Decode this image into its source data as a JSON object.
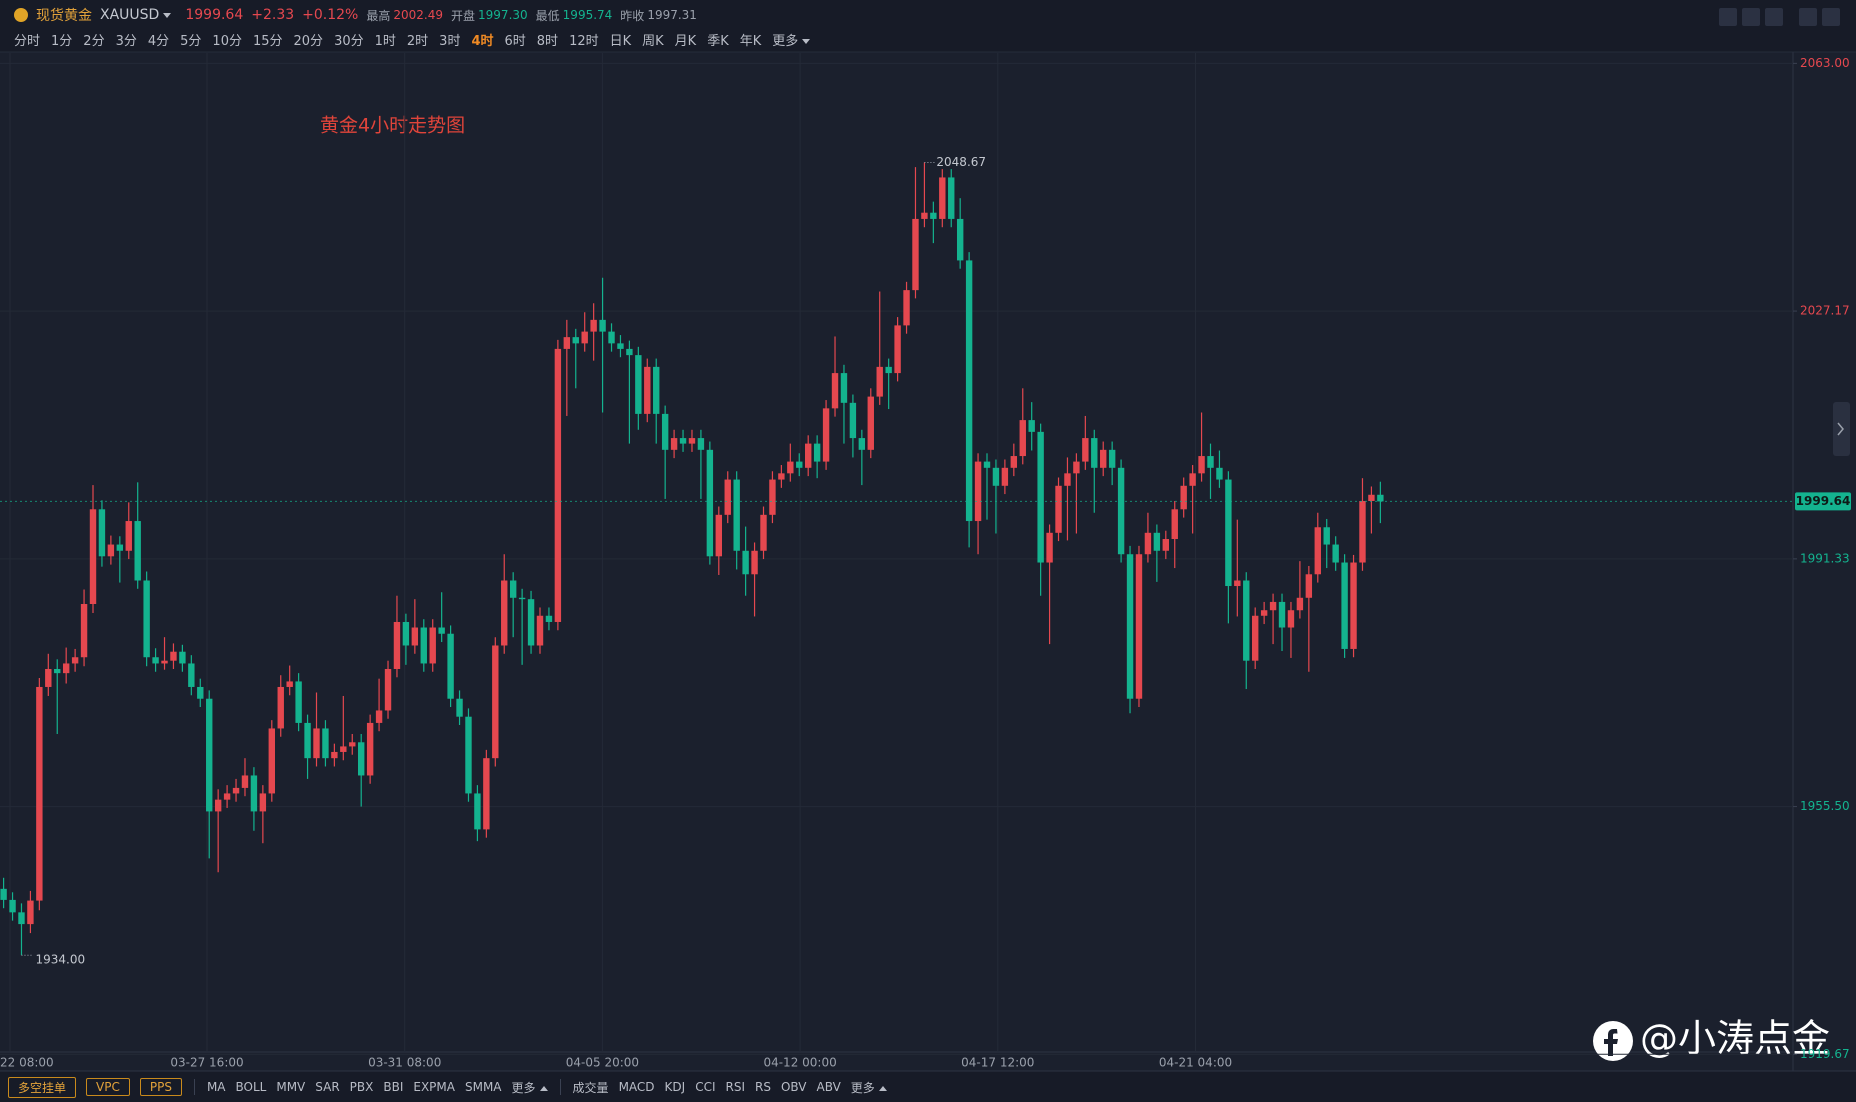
{
  "header": {
    "name": "现货黄金",
    "symbol": "XAUUSD",
    "price": "1999.64",
    "change": "+2.33",
    "change_pct": "+0.12%",
    "high_label": "最高",
    "high": "2002.49",
    "open_label": "开盘",
    "open": "1997.30",
    "low_label": "最低",
    "low": "1995.74",
    "prev_close_label": "昨收",
    "prev_close": "1997.31"
  },
  "timeframes": [
    "分时",
    "1分",
    "2分",
    "3分",
    "4分",
    "5分",
    "10分",
    "15分",
    "20分",
    "30分",
    "1时",
    "2时",
    "3时",
    "4时",
    "6时",
    "8时",
    "12时",
    "日K",
    "周K",
    "月K",
    "季K",
    "年K",
    "更多"
  ],
  "active_timeframe": "4时",
  "chart_data": {
    "type": "candlestick",
    "title": "黄金4小时走势图",
    "up_color": "#e5484f",
    "down_color": "#14b38f",
    "grid": true,
    "ylim": [
      1920.0,
      2064.5
    ],
    "yticks": [
      {
        "value": 2063.0,
        "label": "2063.00"
      },
      {
        "value": 2027.17,
        "label": "2027.17"
      },
      {
        "value": 1991.33,
        "label": "1991.33"
      },
      {
        "value": 1955.5,
        "label": "1955.50"
      },
      {
        "value": 1919.67,
        "label": "1919.67"
      }
    ],
    "xlabels": [
      "22 08:00",
      "03-27 16:00",
      "03-31 08:00",
      "04-05 20:00",
      "04-12 00:00",
      "04-17 12:00",
      "04-21 04:00"
    ],
    "low_label": "1934.00",
    "candles": [
      [
        1943.6,
        1945.2,
        1940.8,
        1942.0
      ],
      [
        1942.0,
        1943.1,
        1939.0,
        1940.2
      ],
      [
        1940.2,
        1941.5,
        1934.0,
        1938.5
      ],
      [
        1938.5,
        1943.3,
        1937.2,
        1941.9
      ],
      [
        1941.9,
        1974.1,
        1940.5,
        1972.8
      ],
      [
        1972.8,
        1977.6,
        1971.5,
        1975.4
      ],
      [
        1975.4,
        1976.8,
        1966.0,
        1974.8
      ],
      [
        1974.8,
        1978.5,
        1973.3,
        1976.2
      ],
      [
        1976.2,
        1978.3,
        1975.0,
        1977.1
      ],
      [
        1977.1,
        1986.9,
        1975.8,
        1984.8
      ],
      [
        1984.8,
        2002.0,
        1983.5,
        1998.5
      ],
      [
        1998.5,
        1999.8,
        1990.2,
        1991.7
      ],
      [
        1991.7,
        1994.7,
        1990.5,
        1993.4
      ],
      [
        1993.4,
        1994.6,
        1987.9,
        1992.5
      ],
      [
        1992.5,
        1999.5,
        1991.3,
        1996.8
      ],
      [
        1996.8,
        2002.4,
        1987.0,
        1988.2
      ],
      [
        1988.2,
        1989.5,
        1975.8,
        1977.1
      ],
      [
        1977.1,
        1978.4,
        1975.0,
        1976.2
      ],
      [
        1976.2,
        1980.0,
        1975.3,
        1976.6
      ],
      [
        1976.6,
        1979.1,
        1975.4,
        1977.9
      ],
      [
        1977.9,
        1978.9,
        1975.0,
        1976.2
      ],
      [
        1976.2,
        1977.4,
        1971.6,
        1972.8
      ],
      [
        1972.8,
        1974.0,
        1969.9,
        1971.1
      ],
      [
        1971.1,
        1972.3,
        1948.0,
        1954.8
      ],
      [
        1954.8,
        1958.0,
        1946.0,
        1956.5
      ],
      [
        1956.5,
        1958.6,
        1955.3,
        1957.4
      ],
      [
        1957.4,
        1959.5,
        1956.2,
        1958.2
      ],
      [
        1958.2,
        1962.5,
        1957.0,
        1960.0
      ],
      [
        1960.0,
        1961.2,
        1952.0,
        1954.8
      ],
      [
        1954.8,
        1958.6,
        1950.2,
        1957.4
      ],
      [
        1957.4,
        1968.0,
        1956.2,
        1966.8
      ],
      [
        1966.8,
        1974.5,
        1965.6,
        1972.8
      ],
      [
        1972.8,
        1975.9,
        1971.6,
        1973.6
      ],
      [
        1973.6,
        1974.8,
        1966.4,
        1967.6
      ],
      [
        1967.6,
        1968.8,
        1959.5,
        1962.5
      ],
      [
        1962.5,
        1972.0,
        1961.3,
        1966.8
      ],
      [
        1966.8,
        1968.0,
        1961.3,
        1962.5
      ],
      [
        1962.5,
        1964.6,
        1961.3,
        1963.4
      ],
      [
        1963.4,
        1971.5,
        1962.2,
        1964.2
      ],
      [
        1964.2,
        1966.0,
        1963.0,
        1964.8
      ],
      [
        1964.8,
        1966.0,
        1955.5,
        1960.0
      ],
      [
        1960.0,
        1968.8,
        1958.8,
        1967.6
      ],
      [
        1967.6,
        1974.0,
        1966.4,
        1969.4
      ],
      [
        1969.4,
        1976.6,
        1968.2,
        1975.4
      ],
      [
        1975.4,
        1986.0,
        1974.2,
        1982.2
      ],
      [
        1982.2,
        1983.4,
        1976.0,
        1978.8
      ],
      [
        1978.8,
        1985.5,
        1977.6,
        1981.4
      ],
      [
        1981.4,
        1982.6,
        1975.0,
        1976.2
      ],
      [
        1976.2,
        1982.6,
        1975.0,
        1981.4
      ],
      [
        1981.4,
        1986.5,
        1979.3,
        1980.5
      ],
      [
        1980.5,
        1981.7,
        1969.9,
        1971.1
      ],
      [
        1971.1,
        1972.3,
        1967.3,
        1968.5
      ],
      [
        1968.5,
        1969.7,
        1956.2,
        1957.4
      ],
      [
        1957.4,
        1958.6,
        1950.5,
        1952.2
      ],
      [
        1952.2,
        1963.7,
        1951.0,
        1962.5
      ],
      [
        1962.5,
        1980.0,
        1961.3,
        1978.8
      ],
      [
        1978.8,
        1992.0,
        1977.6,
        1988.2
      ],
      [
        1988.2,
        1989.4,
        1980.0,
        1985.7
      ],
      [
        1985.7,
        1987.0,
        1976.0,
        1985.5
      ],
      [
        1985.5,
        1986.7,
        1977.6,
        1978.8
      ],
      [
        1978.8,
        1984.3,
        1977.6,
        1983.1
      ],
      [
        1983.1,
        1984.3,
        1981.0,
        1982.2
      ],
      [
        1982.2,
        2023.0,
        1981.0,
        2021.7
      ],
      [
        2021.7,
        2025.9,
        2012.0,
        2023.4
      ],
      [
        2023.4,
        2024.6,
        2016.0,
        2022.5
      ],
      [
        2022.5,
        2027.0,
        2021.3,
        2024.2
      ],
      [
        2024.2,
        2028.3,
        2020.0,
        2025.9
      ],
      [
        2025.9,
        2032.0,
        2012.5,
        2024.2
      ],
      [
        2024.2,
        2025.4,
        2021.3,
        2022.5
      ],
      [
        2022.5,
        2023.7,
        2020.5,
        2021.7
      ],
      [
        2021.7,
        2022.9,
        2008.0,
        2020.8
      ],
      [
        2020.8,
        2022.0,
        2010.0,
        2012.3
      ],
      [
        2012.3,
        2020.3,
        2011.1,
        2019.1
      ],
      [
        2019.1,
        2020.3,
        2008.0,
        2012.3
      ],
      [
        2012.3,
        2013.5,
        2000.0,
        2007.1
      ],
      [
        2007.1,
        2010.0,
        2005.9,
        2008.8
      ],
      [
        2008.8,
        2010.0,
        2006.8,
        2008.0
      ],
      [
        2008.0,
        2010.0,
        2006.8,
        2008.8
      ],
      [
        2008.8,
        2010.0,
        2000.0,
        2007.1
      ],
      [
        2007.1,
        2008.3,
        1990.5,
        1991.7
      ],
      [
        1991.7,
        1998.9,
        1989.0,
        1997.7
      ],
      [
        1997.7,
        2004.0,
        1996.5,
        2002.8
      ],
      [
        2002.8,
        2004.0,
        1989.8,
        1992.5
      ],
      [
        1992.5,
        1996.0,
        1986.0,
        1989.1
      ],
      [
        1989.1,
        1993.7,
        1983.0,
        1992.5
      ],
      [
        1992.5,
        1998.9,
        1991.3,
        1997.7
      ],
      [
        1997.7,
        2004.0,
        1996.5,
        2002.8
      ],
      [
        2002.8,
        2004.9,
        2001.6,
        2003.7
      ],
      [
        2003.7,
        2008.0,
        2002.5,
        2005.4
      ],
      [
        2005.4,
        2006.6,
        2003.3,
        2004.5
      ],
      [
        2004.5,
        2009.2,
        2003.3,
        2008.0
      ],
      [
        2008.0,
        2009.2,
        2003.0,
        2005.4
      ],
      [
        2005.4,
        2014.3,
        2004.2,
        2013.1
      ],
      [
        2013.1,
        2023.5,
        2011.9,
        2018.2
      ],
      [
        2018.2,
        2019.4,
        2008.0,
        2013.9
      ],
      [
        2013.9,
        2015.1,
        2006.0,
        2008.8
      ],
      [
        2008.8,
        2010.0,
        2002.0,
        2007.1
      ],
      [
        2007.1,
        2016.0,
        2005.9,
        2014.8
      ],
      [
        2014.8,
        2030.0,
        2013.6,
        2019.1
      ],
      [
        2019.1,
        2020.3,
        2013.0,
        2018.2
      ],
      [
        2018.2,
        2026.3,
        2017.0,
        2025.1
      ],
      [
        2025.1,
        2031.4,
        2023.9,
        2030.2
      ],
      [
        2030.2,
        2048.0,
        2029.0,
        2040.5
      ],
      [
        2040.5,
        2048.67,
        2039.3,
        2041.4
      ],
      [
        2041.4,
        2043.0,
        2037.0,
        2040.5
      ],
      [
        2040.5,
        2047.7,
        2039.3,
        2046.5
      ],
      [
        2046.5,
        2047.7,
        2039.3,
        2040.5
      ],
      [
        2040.5,
        2043.5,
        2033.3,
        2034.5
      ],
      [
        2034.5,
        2035.7,
        1993.0,
        1996.8
      ],
      [
        1996.8,
        2006.6,
        1992.0,
        2005.4
      ],
      [
        2005.4,
        2006.6,
        1997.0,
        2004.5
      ],
      [
        2004.5,
        2005.7,
        1995.0,
        2001.9
      ],
      [
        2001.9,
        2005.7,
        2000.7,
        2004.5
      ],
      [
        2004.5,
        2008.0,
        2003.3,
        2006.2
      ],
      [
        2006.2,
        2016.0,
        2005.0,
        2011.4
      ],
      [
        2011.4,
        2014.0,
        2007.0,
        2009.7
      ],
      [
        2009.7,
        2010.9,
        1986.0,
        1990.8
      ],
      [
        1990.8,
        1996.3,
        1979.0,
        1995.1
      ],
      [
        1995.1,
        2003.1,
        1993.9,
        2001.9
      ],
      [
        2001.9,
        2006.0,
        1994.0,
        2003.7
      ],
      [
        2003.7,
        2006.6,
        1995.0,
        2005.4
      ],
      [
        2005.4,
        2012.0,
        2004.2,
        2008.8
      ],
      [
        2008.8,
        2010.0,
        1998.0,
        2004.5
      ],
      [
        2004.5,
        2008.3,
        2003.3,
        2007.1
      ],
      [
        2007.1,
        2008.3,
        2002.0,
        2004.5
      ],
      [
        2004.5,
        2005.7,
        1990.8,
        1992.0
      ],
      [
        1992.0,
        1993.2,
        1969.0,
        1971.1
      ],
      [
        1971.1,
        1993.2,
        1969.9,
        1992.0
      ],
      [
        1992.0,
        1998.0,
        1990.8,
        1995.1
      ],
      [
        1995.1,
        1996.3,
        1988.0,
        1992.5
      ],
      [
        1992.5,
        1995.4,
        1991.3,
        1994.2
      ],
      [
        1994.2,
        1999.7,
        1990.0,
        1998.5
      ],
      [
        1998.5,
        2003.1,
        1997.3,
        2001.9
      ],
      [
        2001.9,
        2004.9,
        1995.0,
        2003.7
      ],
      [
        2003.7,
        2012.5,
        2002.5,
        2006.2
      ],
      [
        2006.2,
        2008.0,
        2000.0,
        2004.5
      ],
      [
        2004.5,
        2007.0,
        2001.6,
        2002.8
      ],
      [
        2002.8,
        2004.0,
        1982.0,
        1987.4
      ],
      [
        1987.4,
        1997.0,
        1983.0,
        1988.2
      ],
      [
        1988.2,
        1989.4,
        1972.5,
        1976.6
      ],
      [
        1976.6,
        1984.3,
        1975.4,
        1983.1
      ],
      [
        1983.1,
        1985.1,
        1981.9,
        1983.9
      ],
      [
        1983.9,
        1986.3,
        1979.0,
        1985.1
      ],
      [
        1985.1,
        1986.3,
        1978.0,
        1981.4
      ],
      [
        1981.4,
        1985.1,
        1977.0,
        1983.9
      ],
      [
        1983.9,
        1991.0,
        1982.7,
        1985.7
      ],
      [
        1985.7,
        1990.3,
        1975.0,
        1989.1
      ],
      [
        1989.1,
        1998.0,
        1987.9,
        1995.9
      ],
      [
        1995.9,
        1997.1,
        1990.0,
        1993.4
      ],
      [
        1993.4,
        1994.6,
        1989.6,
        1990.8
      ],
      [
        1990.8,
        1992.0,
        1977.0,
        1978.3
      ],
      [
        1978.3,
        1991.9,
        1977.1,
        1990.8
      ],
      [
        1990.8,
        2003.0,
        1989.6,
        1999.7
      ],
      [
        1999.7,
        2001.8,
        1995.0,
        2000.6
      ],
      [
        2000.6,
        2002.49,
        1996.5,
        1999.64
      ]
    ]
  },
  "bottom": {
    "buttons": [
      "多空挂单",
      "VPC",
      "PPS"
    ],
    "main_indicators": [
      "MA",
      "BOLL",
      "MMV",
      "SAR",
      "PBX",
      "BBI",
      "EXPMA",
      "SMMA",
      "更多"
    ],
    "sub_indicators": [
      "成交量",
      "MACD",
      "KDJ",
      "CCI",
      "RSI",
      "RS",
      "OBV",
      "ABV",
      "更多"
    ]
  },
  "watermark": "@小涛点金"
}
